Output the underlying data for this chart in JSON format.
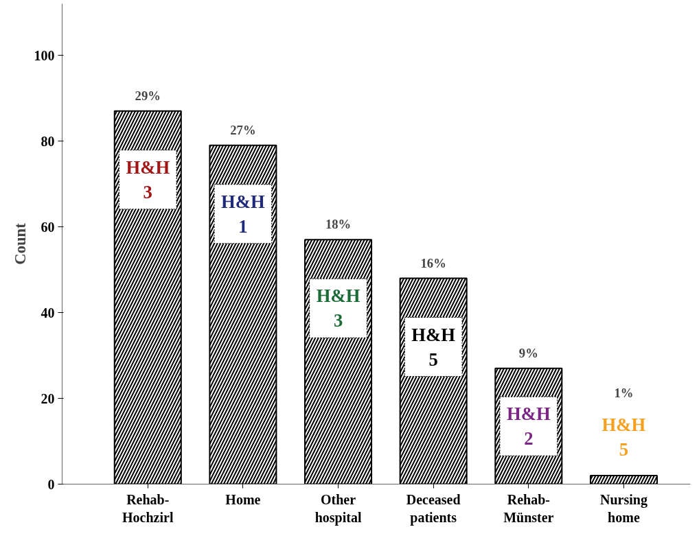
{
  "chart_data": {
    "type": "bar",
    "ylabel": "Count",
    "categories": [
      "Rehab-\nHochzirl",
      "Home",
      "Other\nhospital",
      "Deceased\npatients",
      "Rehab-\nMünster",
      "Nursing\nhome"
    ],
    "values": [
      87,
      79,
      57,
      48,
      27,
      2
    ],
    "color": "#000000",
    "ylim": [
      0,
      112
    ],
    "yticks": [
      0,
      20,
      40,
      60,
      80,
      100
    ],
    "grid": false,
    "annotations": [
      {
        "text": "29%",
        "x": "Rehab-\nHochzirl",
        "y": 87
      },
      {
        "text": "27%",
        "x": "Home",
        "y": 79
      },
      {
        "text": "18%",
        "x": "Other\nhospital",
        "y": 57
      },
      {
        "text": "16%",
        "x": "Deceased\npatients",
        "y": 48
      },
      {
        "text": "9%",
        "x": "Rehab-\nMünster",
        "y": 27
      },
      "1%",
      "H&H\n3",
      "H&H\n1",
      "H&H\n3",
      "H&H\n5",
      "H&H\n2",
      "H&H\n5"
    ]
  }
}
